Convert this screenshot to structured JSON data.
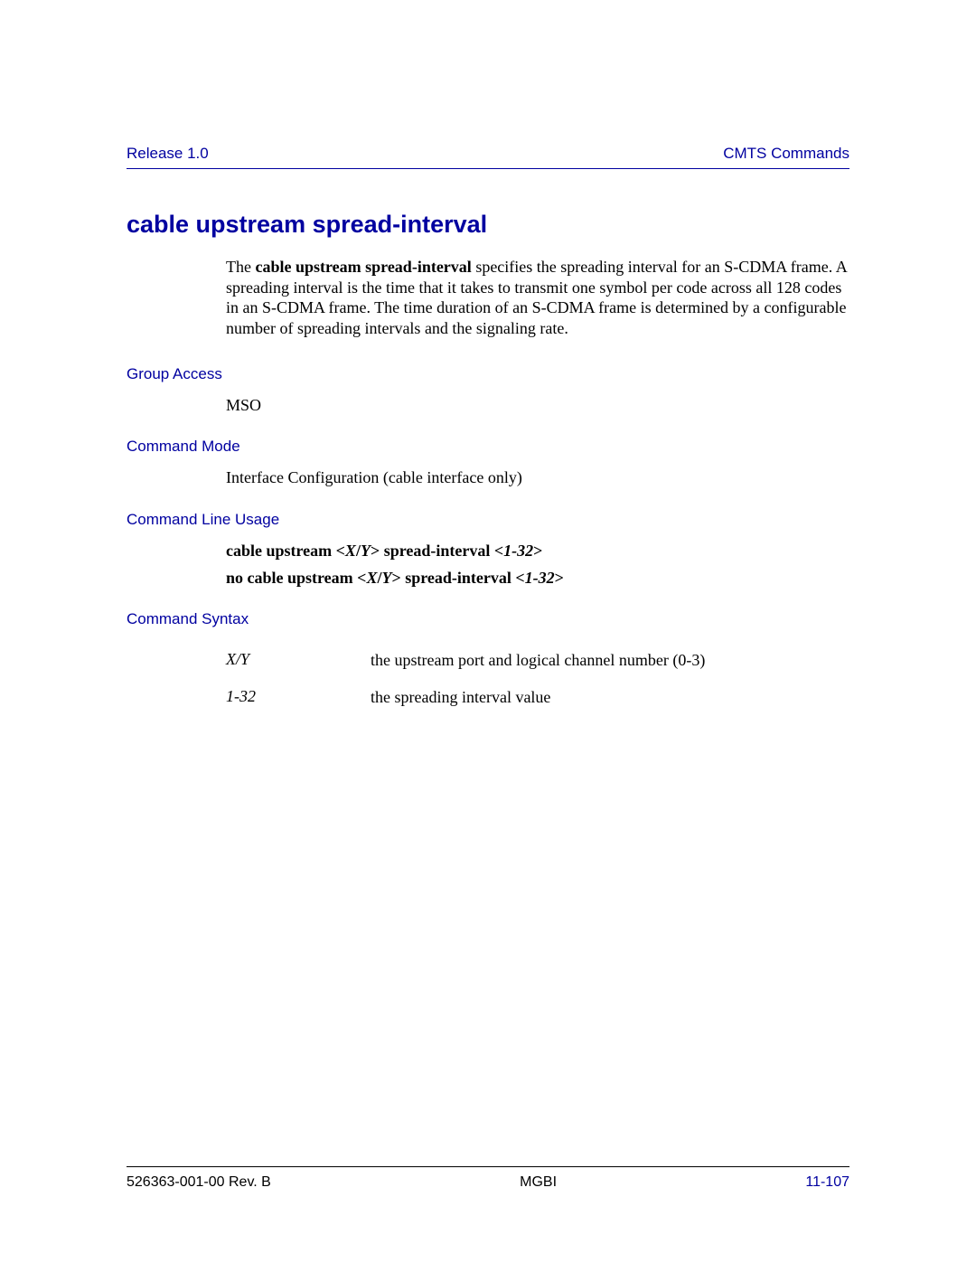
{
  "colors": {
    "heading_blue": "#0000a0",
    "text_black": "#000000",
    "background": "#ffffff",
    "rule_blue": "#0000a0",
    "rule_black": "#000000"
  },
  "typography": {
    "heading_font": "Arial, Helvetica, sans-serif",
    "body_font": "Times New Roman, Times, serif",
    "title_size_pt": 20,
    "section_label_size_pt": 13,
    "body_size_pt": 13
  },
  "header": {
    "left": "Release 1.0",
    "right": "CMTS Commands"
  },
  "title": "cable upstream spread-interval",
  "description": {
    "prefix": "The ",
    "bold": "cable upstream spread-interval",
    "rest": " specifies the spreading interval for an S-CDMA frame. A spreading interval is the time that it takes to transmit one symbol per code across all 128 codes in an S-CDMA frame. The time duration of an S-CDMA frame is determined by a configurable number of spreading intervals and the signaling rate."
  },
  "sections": {
    "group_access": {
      "label": "Group Access",
      "value": "MSO"
    },
    "command_mode": {
      "label": "Command Mode",
      "value": "Interface Configuration (cable interface only)"
    },
    "command_line_usage": {
      "label": "Command Line Usage",
      "lines": [
        {
          "b1": "cable upstream <",
          "i1": "X",
          "b2": "/",
          "i2": "Y",
          "b3": "> spread-interval <",
          "i3": "1-32",
          "b4": ">"
        },
        {
          "b1": "no cable upstream <",
          "i1": "X",
          "b2": "/",
          "i2": "Y",
          "b3": "> spread-interval <",
          "i3": "1-32",
          "b4": ">"
        }
      ]
    },
    "command_syntax": {
      "label": "Command Syntax",
      "rows": [
        {
          "param": "X/Y",
          "desc": "the upstream port and logical channel number (0-3)"
        },
        {
          "param": "1-32",
          "desc": "the spreading interval value"
        }
      ]
    }
  },
  "footer": {
    "left": "526363-001-00 Rev. B",
    "center": "MGBI",
    "right": "11-107"
  }
}
